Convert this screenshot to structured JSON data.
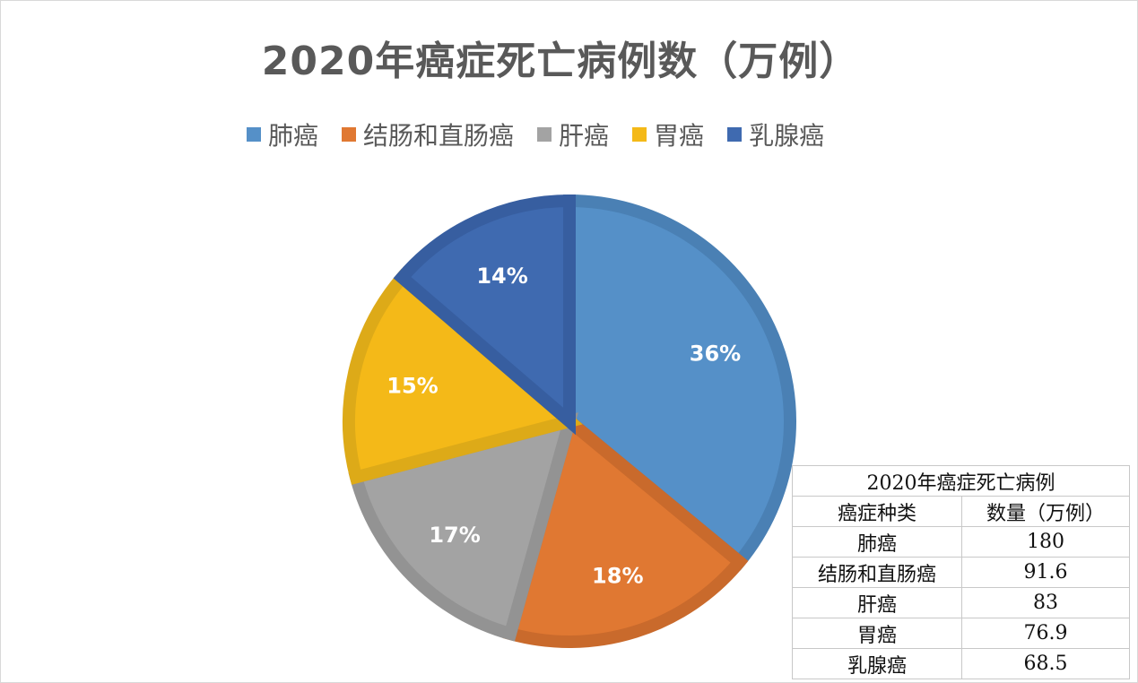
{
  "chart_data": {
    "type": "pie",
    "title": "2020年癌症死亡病例数（万例）",
    "legend_position": "top",
    "categories": [
      "肺癌",
      "结肠和直肠癌",
      "肝癌",
      "胃癌",
      "乳腺癌"
    ],
    "values": [
      180,
      91.6,
      83,
      76.9,
      68.5
    ],
    "labels": [
      "36%",
      "18%",
      "17%",
      "15%",
      "14%"
    ],
    "colors": [
      "#5590c8",
      "#e07832",
      "#a3a3a3",
      "#f4b918",
      "#3f6ab0"
    ],
    "border_colors": [
      "#4a80b4",
      "#c96a2c",
      "#939393",
      "#ddaa18",
      "#375ea0"
    ],
    "unit": "万例"
  },
  "title": "2020年癌症死亡病例数（万例）",
  "legend": [
    {
      "label": "肺癌",
      "color": "#5590c8"
    },
    {
      "label": "结肠和直肠癌",
      "color": "#e07832"
    },
    {
      "label": "肝癌",
      "color": "#a3a3a3"
    },
    {
      "label": "胃癌",
      "color": "#f4b918"
    },
    {
      "label": "乳腺癌",
      "color": "#3f6ab0"
    }
  ],
  "table": {
    "title": "2020年癌症死亡病例",
    "headers": [
      "癌症种类",
      "数量（万例）"
    ],
    "rows": [
      [
        "肺癌",
        "180"
      ],
      [
        "结肠和直肠癌",
        "91.6"
      ],
      [
        "肝癌",
        "83"
      ],
      [
        "胃癌",
        "76.9"
      ],
      [
        "乳腺癌",
        "68.5"
      ]
    ]
  }
}
